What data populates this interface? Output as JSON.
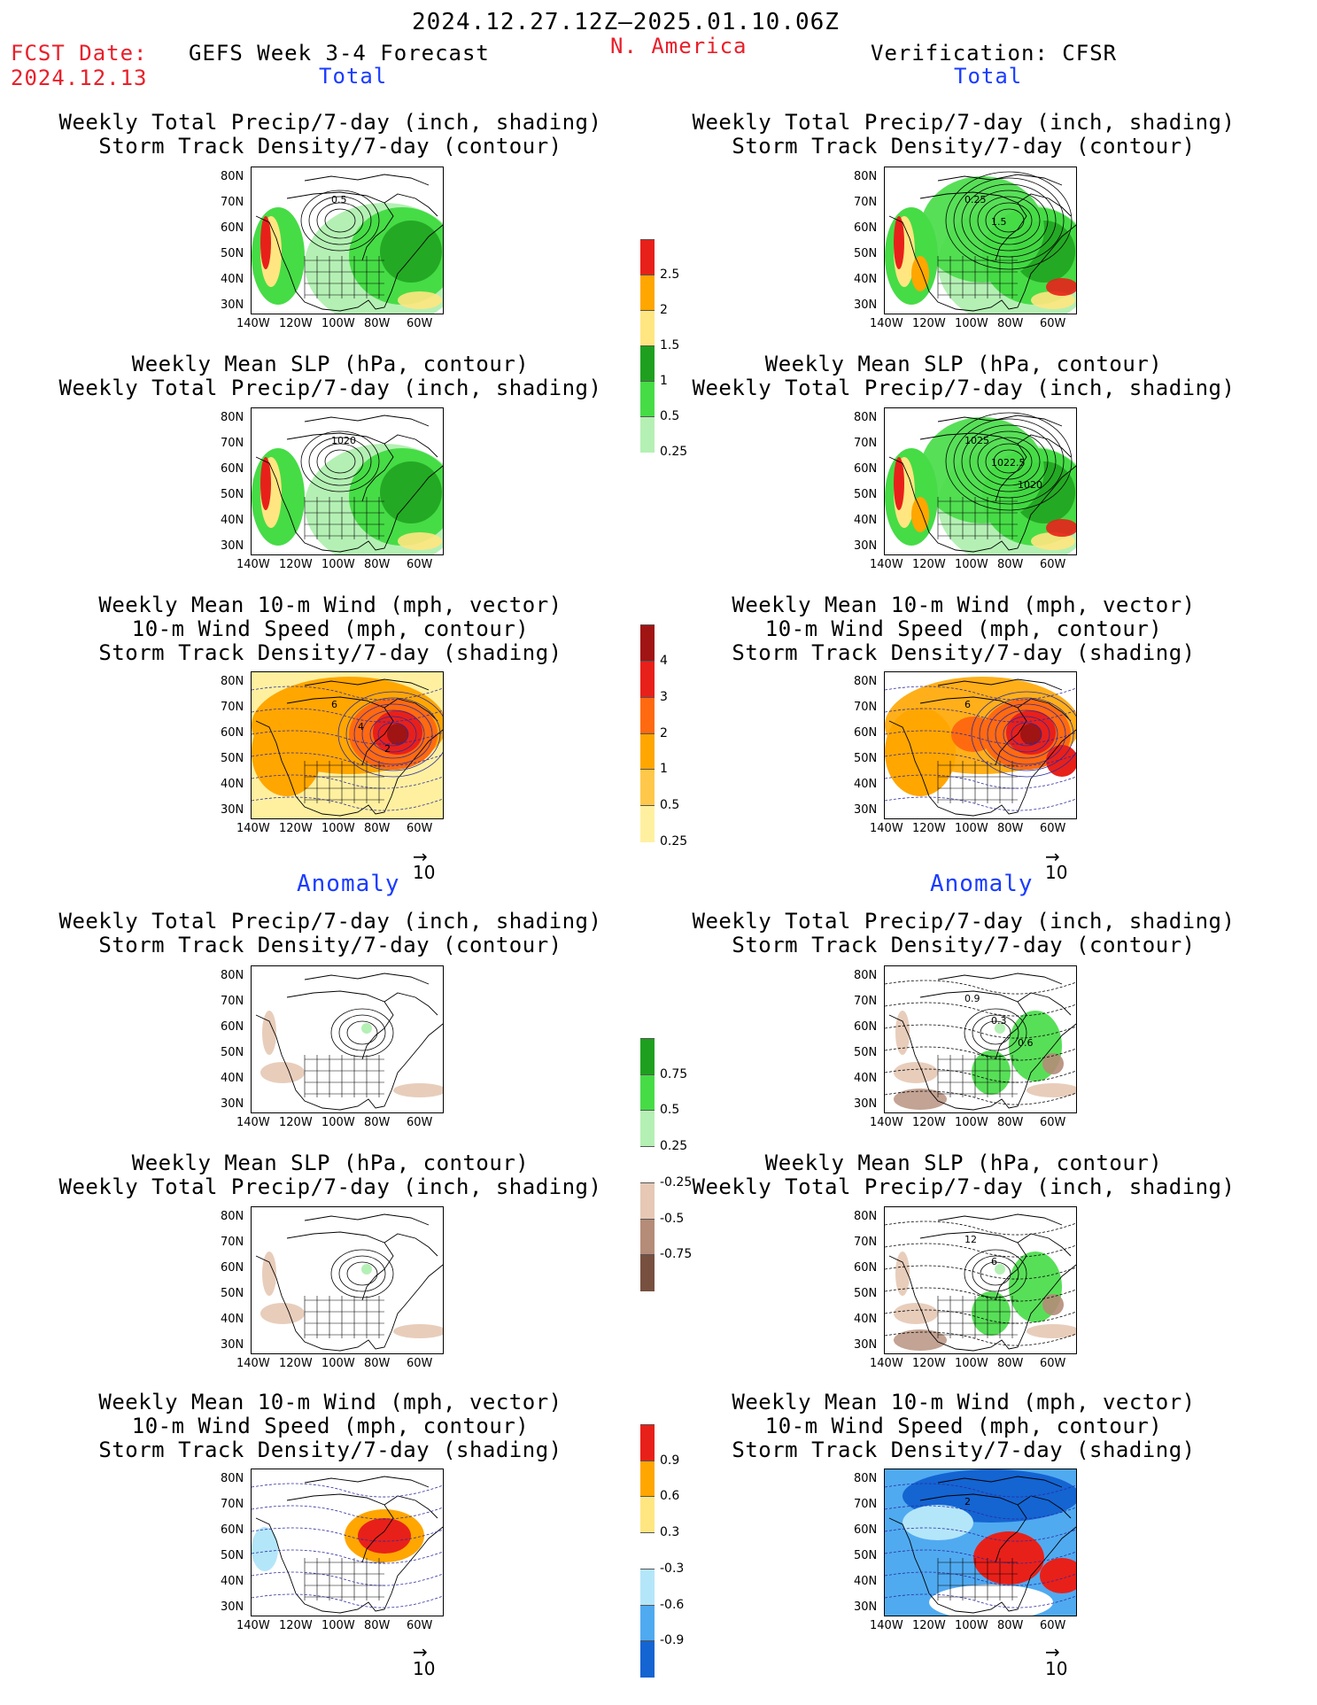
{
  "header": {
    "date_range": "2024.12.27.12Z–2025.01.10.06Z",
    "fcst_label": "FCST Date:",
    "fcst_date": "2024.12.13",
    "forecast_title": "GEFS Week 3-4 Forecast",
    "region": "N. America",
    "verification": "Verification: CFSR"
  },
  "sections": {
    "total_left": "Total",
    "total_right": "Total",
    "anomaly_left": "Anomaly",
    "anomaly_right": "Anomaly"
  },
  "panel_titles": {
    "precip_storm": [
      "Weekly Total Precip/7-day (inch, shading)",
      "Storm Track Density/7-day (contour)"
    ],
    "slp_precip": [
      "Weekly Mean SLP (hPa, contour)",
      "Weekly Total Precip/7-day (inch, shading)"
    ],
    "wind_storm": [
      "Weekly Mean 10-m Wind (mph, vector)",
      "10-m Wind Speed (mph, contour)",
      "Storm Track Density/7-day (shading)"
    ]
  },
  "axes": {
    "lat_ticks": [
      "80N",
      "70N",
      "60N",
      "50N",
      "40N",
      "30N"
    ],
    "lon_ticks": [
      "140W",
      "120W",
      "100W",
      "80W",
      "60W"
    ]
  },
  "contour_labels": {
    "p1_left": [
      "0.5"
    ],
    "p1_right": [
      "0.25",
      "1.5"
    ],
    "p2_left": [
      "1020"
    ],
    "p2_right": [
      "1025",
      "1022.5",
      "1020"
    ],
    "p3_left": [
      "6",
      "4",
      "2"
    ],
    "p3_right": [
      "6"
    ],
    "p4_right": [
      "0.9",
      "0.3",
      "0.6"
    ],
    "p5_right": [
      "12",
      "6"
    ],
    "p6_right": [
      "2"
    ]
  },
  "vector_ref": "10",
  "colorbars": {
    "precip_total": {
      "labels": [
        "2.5",
        "2",
        "1.5",
        "1",
        "0.5",
        "0.25"
      ],
      "colors": [
        "#e8201a",
        "#ffa600",
        "#ffe680",
        "#1ea01e",
        "#46dc46",
        "#b4f0b4"
      ]
    },
    "storm_total": {
      "labels": [
        "4",
        "3",
        "2",
        "1",
        "0.5",
        "0.25"
      ],
      "colors": [
        "#a01414",
        "#e8201a",
        "#ff6a10",
        "#ffa600",
        "#ffc84a",
        "#fff0a0"
      ]
    },
    "precip_anom": {
      "labels": [
        "0.75",
        "0.5",
        "0.25",
        "-0.25",
        "-0.5",
        "-0.75"
      ],
      "colors": [
        "#1ea01e",
        "#46dc46",
        "#b4f0b4",
        "#ffffff",
        "#e6c8b4",
        "#b48c78",
        "#785040"
      ]
    },
    "storm_anom": {
      "labels": [
        "0.9",
        "0.6",
        "0.3",
        "-0.3",
        "-0.6",
        "-0.9"
      ],
      "colors": [
        "#e8201a",
        "#ffa600",
        "#ffe680",
        "#ffffff",
        "#b4e6fa",
        "#50aaf0",
        "#1464d2"
      ]
    }
  },
  "map_colors": {
    "land_line": "#000000",
    "contour_blue": "#2a2aa0"
  }
}
